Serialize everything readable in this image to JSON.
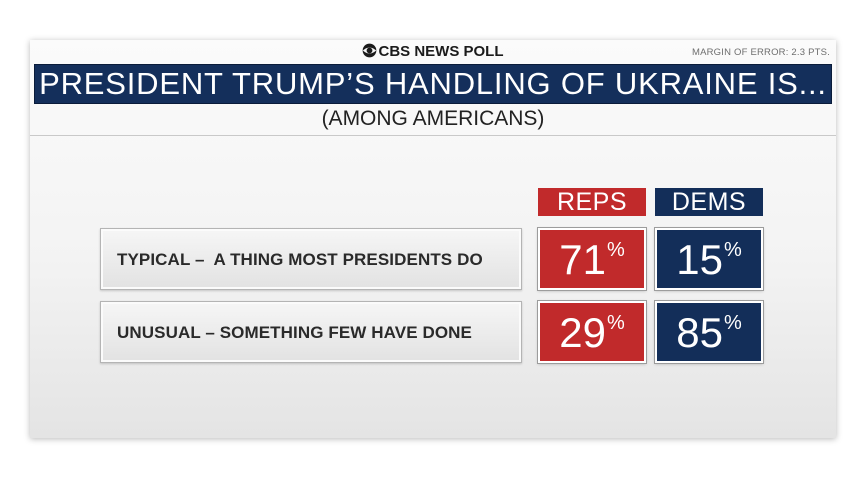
{
  "header": {
    "brand": "CBS NEWS POLL",
    "margin_of_error": "MARGIN OF ERROR: 2.3 PTS.",
    "title": "PRESIDENT TRUMP’S HANDLING OF UKRAINE IS...",
    "subtitle": "(AMONG AMERICANS)"
  },
  "icons": {
    "brand_logo": "cbs-eye-icon"
  },
  "colors": {
    "reps": "#c12a2b",
    "dems": "#132e59",
    "title_bar": "#142f5b"
  },
  "chart_data": {
    "type": "table",
    "columns": [
      "REPS",
      "DEMS"
    ],
    "rows": [
      {
        "label": "TYPICAL –  A THING MOST PRESIDENTS DO",
        "values": [
          71,
          15
        ]
      },
      {
        "label": "UNUSUAL – SOMETHING FEW HAVE DONE",
        "values": [
          29,
          85
        ]
      }
    ],
    "unit": "%"
  }
}
